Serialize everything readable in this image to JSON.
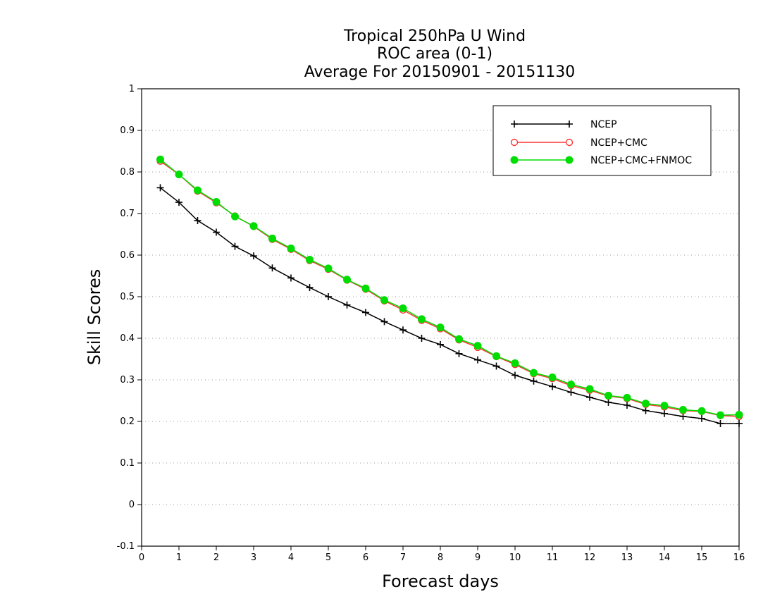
{
  "chart_data": {
    "type": "line",
    "title": [
      "Tropical 250hPa U Wind",
      "ROC area (0-1)",
      "Average For 20150901 - 20151130"
    ],
    "xlabel": "Forecast days",
    "ylabel": "Skill Scores",
    "xlim": [
      0,
      16
    ],
    "ylim": [
      -0.1,
      1
    ],
    "xticks": [
      "0",
      "1",
      "2",
      "3",
      "4",
      "5",
      "6",
      "7",
      "8",
      "9",
      "10",
      "11",
      "12",
      "13",
      "14",
      "15",
      "16"
    ],
    "yticks": [
      "-0.1",
      "0",
      "0.1",
      "0.2",
      "0.3",
      "0.4",
      "0.5",
      "0.6",
      "0.7",
      "0.8",
      "0.9",
      "1"
    ],
    "grid": "horizontal dotted",
    "legend_position": "top-right",
    "x": [
      0.5,
      1,
      1.5,
      2,
      2.5,
      3,
      3.5,
      4,
      4.5,
      5,
      5.5,
      6,
      6.5,
      7,
      7.5,
      8,
      8.5,
      9,
      9.5,
      10,
      10.5,
      11,
      11.5,
      12,
      12.5,
      13,
      13.5,
      14,
      14.5,
      15,
      15.5,
      16
    ],
    "series": [
      {
        "name": "NCEP",
        "color": "#000000",
        "marker": "plus",
        "values": [
          0.762,
          0.727,
          0.683,
          0.655,
          0.621,
          0.598,
          0.569,
          0.545,
          0.522,
          0.5,
          0.48,
          0.462,
          0.44,
          0.42,
          0.4,
          0.385,
          0.363,
          0.348,
          0.333,
          0.311,
          0.297,
          0.284,
          0.27,
          0.258,
          0.246,
          0.239,
          0.226,
          0.219,
          0.212,
          0.207,
          0.195,
          0.195
        ]
      },
      {
        "name": "NCEP+CMC",
        "color": "#ff3333",
        "marker": "open-circle",
        "values": [
          0.826,
          0.794,
          0.754,
          0.726,
          0.694,
          0.669,
          0.638,
          0.614,
          0.587,
          0.566,
          0.54,
          0.518,
          0.49,
          0.468,
          0.443,
          0.423,
          0.396,
          0.378,
          0.356,
          0.337,
          0.315,
          0.303,
          0.286,
          0.275,
          0.261,
          0.255,
          0.241,
          0.235,
          0.226,
          0.224,
          0.214,
          0.212
        ]
      },
      {
        "name": "NCEP+CMC+FNMOC",
        "color": "#00dd00",
        "marker": "filled-circle",
        "values": [
          0.83,
          0.794,
          0.756,
          0.728,
          0.693,
          0.67,
          0.64,
          0.616,
          0.589,
          0.568,
          0.541,
          0.52,
          0.492,
          0.472,
          0.446,
          0.426,
          0.398,
          0.382,
          0.357,
          0.34,
          0.317,
          0.306,
          0.289,
          0.278,
          0.262,
          0.257,
          0.243,
          0.238,
          0.228,
          0.225,
          0.215,
          0.216
        ]
      }
    ]
  }
}
